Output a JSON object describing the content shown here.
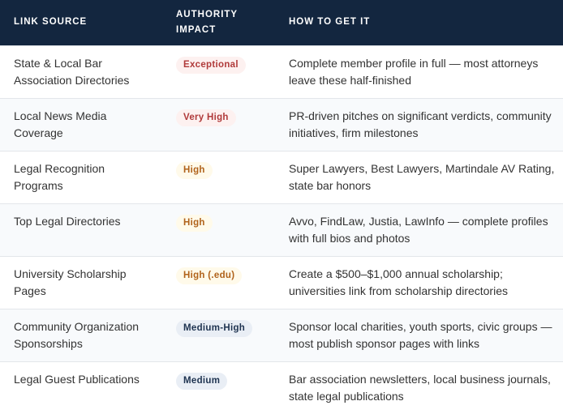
{
  "headers": [
    "LINK SOURCE",
    "AUTHORITY IMPACT",
    "HOW TO GET IT"
  ],
  "rows": [
    {
      "source": "State & Local Bar Association Directories",
      "impact": "Exceptional",
      "level": "red",
      "how": "Complete member profile in full — most attorneys leave these half-finished"
    },
    {
      "source": "Local News Media Coverage",
      "impact": "Very High",
      "level": "red",
      "how": "PR-driven pitches on significant verdicts, community initiatives, firm milestones"
    },
    {
      "source": "Legal Recognition Programs",
      "impact": "High",
      "level": "amber",
      "how": "Super Lawyers, Best Lawyers, Martindale AV Rating, state bar honors"
    },
    {
      "source": "Top Legal Directories",
      "impact": "High",
      "level": "amber",
      "how": "Avvo, FindLaw, Justia, LawInfo — complete profiles with full bios and photos"
    },
    {
      "source": "University Scholarship Pages",
      "impact": "High (.edu)",
      "level": "amber",
      "how": "Create a $500–$1,000 annual scholarship; universities link from scholarship directories"
    },
    {
      "source": "Community Organization Sponsorships",
      "impact": "Medium-High",
      "level": "blue",
      "how": "Sponsor local charities, youth sports, civic groups — most publish sponsor pages with links"
    },
    {
      "source": "Legal Guest Publications",
      "impact": "Medium",
      "level": "blue",
      "how": "Bar association newsletters, local business journals, state legal publications"
    }
  ],
  "colors": {
    "header": "#13263f",
    "red": "#b03a3a",
    "amber": "#b0621a",
    "blue": "#1e3350"
  }
}
